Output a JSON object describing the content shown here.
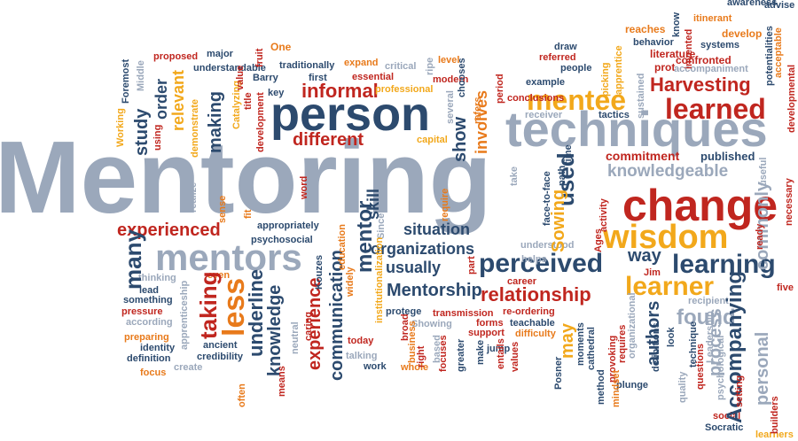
{
  "palette": {
    "red": "#c0261f",
    "orange": "#e87a1b",
    "yellow": "#f2a81b",
    "navy": "#2c4a6e",
    "gray": "#9ba8bb",
    "lightgray": "#b5c0cf"
  },
  "words": [
    {
      "text": "Mentoring",
      "c": "gray"
    },
    {
      "text": "techniques",
      "c": "gray"
    },
    {
      "text": "person",
      "c": "navy"
    },
    {
      "text": "change",
      "c": "red"
    },
    {
      "text": "wisdom",
      "c": "yellow"
    },
    {
      "text": "learned",
      "c": "red"
    },
    {
      "text": "mentee",
      "c": "yellow"
    },
    {
      "text": "Harvesting",
      "c": "red"
    },
    {
      "text": "mentors",
      "c": "gray"
    },
    {
      "text": "perceived",
      "c": "navy"
    },
    {
      "text": "learning",
      "c": "navy"
    },
    {
      "text": "learner",
      "c": "yellow"
    },
    {
      "text": "experienced",
      "c": "red"
    },
    {
      "text": "informal",
      "c": "red"
    },
    {
      "text": "different",
      "c": "red"
    },
    {
      "text": "knowledgeable",
      "c": "gray"
    },
    {
      "text": "situation",
      "c": "navy"
    },
    {
      "text": "organizations",
      "c": "navy"
    },
    {
      "text": "usually",
      "c": "navy"
    },
    {
      "text": "Mentorship",
      "c": "navy"
    },
    {
      "text": "relationship",
      "c": "red"
    },
    {
      "text": "found",
      "c": "gray"
    },
    {
      "text": "way",
      "c": "navy"
    },
    {
      "text": "commitment",
      "c": "red"
    },
    {
      "text": "published",
      "c": "navy"
    },
    {
      "text": "example",
      "c": "navy"
    },
    {
      "text": "receiver",
      "c": "gray"
    },
    {
      "text": "tactics",
      "c": "navy"
    },
    {
      "text": "conclusions",
      "c": "red"
    },
    {
      "text": "draw",
      "c": "navy"
    },
    {
      "text": "referred",
      "c": "red"
    },
    {
      "text": "people",
      "c": "navy"
    },
    {
      "text": "reaches",
      "c": "orange"
    },
    {
      "text": "behavior",
      "c": "navy"
    },
    {
      "text": "literature",
      "c": "red"
    },
    {
      "text": "prot",
      "c": "red"
    },
    {
      "text": "confronted",
      "c": "red"
    },
    {
      "text": "accompaniment",
      "c": "gray"
    },
    {
      "text": "systems",
      "c": "navy"
    },
    {
      "text": "develop",
      "c": "orange"
    },
    {
      "text": "itinerant",
      "c": "orange"
    },
    {
      "text": "awareness",
      "c": "navy"
    },
    {
      "text": "advise",
      "c": "navy"
    },
    {
      "text": "proposed",
      "c": "red"
    },
    {
      "text": "major",
      "c": "navy"
    },
    {
      "text": "One",
      "c": "orange"
    },
    {
      "text": "understandable",
      "c": "navy"
    },
    {
      "text": "traditionally",
      "c": "navy"
    },
    {
      "text": "expand",
      "c": "orange"
    },
    {
      "text": "critical",
      "c": "gray"
    },
    {
      "text": "level",
      "c": "orange"
    },
    {
      "text": "first",
      "c": "navy"
    },
    {
      "text": "essential",
      "c": "red"
    },
    {
      "text": "Barry",
      "c": "navy"
    },
    {
      "text": "professional",
      "c": "yellow"
    },
    {
      "text": "modern",
      "c": "red"
    },
    {
      "text": "key",
      "c": "navy"
    },
    {
      "text": "capital",
      "c": "yellow"
    },
    {
      "text": "appropriately",
      "c": "navy"
    },
    {
      "text": "psychosocial",
      "c": "navy"
    },
    {
      "text": "thinking",
      "c": "gray"
    },
    {
      "text": "lead",
      "c": "navy"
    },
    {
      "text": "something",
      "c": "navy"
    },
    {
      "text": "pressure",
      "c": "red"
    },
    {
      "text": "according",
      "c": "gray"
    },
    {
      "text": "preparing",
      "c": "orange"
    },
    {
      "text": "identity",
      "c": "navy"
    },
    {
      "text": "definition",
      "c": "navy"
    },
    {
      "text": "focus",
      "c": "orange"
    },
    {
      "text": "create",
      "c": "gray"
    },
    {
      "text": "ancient",
      "c": "navy"
    },
    {
      "text": "credibility",
      "c": "navy"
    },
    {
      "text": "even",
      "c": "orange"
    },
    {
      "text": "today",
      "c": "red"
    },
    {
      "text": "talking",
      "c": "gray"
    },
    {
      "text": "work",
      "c": "navy"
    },
    {
      "text": "whole",
      "c": "orange"
    },
    {
      "text": "protege",
      "c": "navy"
    },
    {
      "text": "transmission",
      "c": "red"
    },
    {
      "text": "forms",
      "c": "red"
    },
    {
      "text": "support",
      "c": "red"
    },
    {
      "text": "re-ordering",
      "c": "red"
    },
    {
      "text": "teachable",
      "c": "navy"
    },
    {
      "text": "difficulty",
      "c": "orange"
    },
    {
      "text": "Showing",
      "c": "gray"
    },
    {
      "text": "jump",
      "c": "navy"
    },
    {
      "text": "career",
      "c": "red"
    },
    {
      "text": "understood",
      "c": "gray"
    },
    {
      "text": "helps",
      "c": "gray"
    },
    {
      "text": "Jim",
      "c": "red"
    },
    {
      "text": "recipient",
      "c": "gray"
    },
    {
      "text": "five",
      "c": "red"
    },
    {
      "text": "plunge",
      "c": "navy"
    },
    {
      "text": "social",
      "c": "red"
    },
    {
      "text": "Socratic",
      "c": "navy"
    },
    {
      "text": "learners",
      "c": "yellow"
    },
    {
      "text": "many",
      "c": "navy"
    },
    {
      "text": "taking",
      "c": "red"
    },
    {
      "text": "less",
      "c": "orange"
    },
    {
      "text": "underline",
      "c": "navy"
    },
    {
      "text": "knowledge",
      "c": "navy"
    },
    {
      "text": "experience",
      "c": "red"
    },
    {
      "text": "communication",
      "c": "navy"
    },
    {
      "text": "mentor",
      "c": "navy"
    },
    {
      "text": "skill",
      "c": "navy"
    },
    {
      "text": "used",
      "c": "navy"
    },
    {
      "text": "Sowing",
      "c": "yellow"
    },
    {
      "text": "Accompanying",
      "c": "navy"
    },
    {
      "text": "personal",
      "c": "gray"
    },
    {
      "text": "process",
      "c": "gray"
    },
    {
      "text": "commonly",
      "c": "gray"
    },
    {
      "text": "authors",
      "c": "navy"
    },
    {
      "text": "may",
      "c": "yellow"
    },
    {
      "text": "study",
      "c": "navy"
    },
    {
      "text": "order",
      "c": "navy"
    },
    {
      "text": "relevant",
      "c": "yellow"
    },
    {
      "text": "making",
      "c": "navy"
    },
    {
      "text": "show",
      "c": "navy"
    },
    {
      "text": "involves",
      "c": "orange"
    },
    {
      "text": "Foremost",
      "c": "navy"
    },
    {
      "text": "Middle",
      "c": "gray"
    },
    {
      "text": "Working",
      "c": "yellow"
    },
    {
      "text": "using",
      "c": "red"
    },
    {
      "text": "demonstrate",
      "c": "yellow"
    },
    {
      "text": "Catalyzing",
      "c": "yellow"
    },
    {
      "text": "title",
      "c": "red"
    },
    {
      "text": "development",
      "c": "red"
    },
    {
      "text": "value",
      "c": "red"
    },
    {
      "text": "fruit",
      "c": "red"
    },
    {
      "text": "ripe",
      "c": "gray"
    },
    {
      "text": "several",
      "c": "gray"
    },
    {
      "text": "refers",
      "c": "orange"
    },
    {
      "text": "chooses",
      "c": "navy"
    },
    {
      "text": "period",
      "c": "red"
    },
    {
      "text": "picking",
      "c": "yellow"
    },
    {
      "text": "apprentice",
      "c": "yellow"
    },
    {
      "text": "sustained",
      "c": "gray"
    },
    {
      "text": "know",
      "c": "navy"
    },
    {
      "text": "invented",
      "c": "red"
    },
    {
      "text": "potentialities",
      "c": "navy"
    },
    {
      "text": "acceptable",
      "c": "orange"
    },
    {
      "text": "developmental",
      "c": "red"
    },
    {
      "text": "useful",
      "c": "gray"
    },
    {
      "text": "necessary",
      "c": "red"
    },
    {
      "text": "realize",
      "c": "gray"
    },
    {
      "text": "sense",
      "c": "orange"
    },
    {
      "text": "fit",
      "c": "orange"
    },
    {
      "text": "word",
      "c": "red"
    },
    {
      "text": "Since",
      "c": "gray"
    },
    {
      "text": "require",
      "c": "orange"
    },
    {
      "text": "take",
      "c": "gray"
    },
    {
      "text": "path",
      "c": "navy"
    },
    {
      "text": "face-to-face",
      "c": "navy"
    },
    {
      "text": "time",
      "c": "navy"
    },
    {
      "text": "activity",
      "c": "red"
    },
    {
      "text": "Ages",
      "c": "red"
    },
    {
      "text": "ready",
      "c": "red"
    },
    {
      "text": "Kouzes",
      "c": "navy"
    },
    {
      "text": "education",
      "c": "orange"
    },
    {
      "text": "widely",
      "c": "orange"
    },
    {
      "text": "institutionalization",
      "c": "yellow"
    },
    {
      "text": "part",
      "c": "red"
    },
    {
      "text": "apprenticeship",
      "c": "gray"
    },
    {
      "text": "often",
      "c": "orange"
    },
    {
      "text": "means",
      "c": "red"
    },
    {
      "text": "neutral",
      "c": "gray"
    },
    {
      "text": "caring",
      "c": "red"
    },
    {
      "text": "broad",
      "c": "red"
    },
    {
      "text": "business",
      "c": "orange"
    },
    {
      "text": "right",
      "c": "red"
    },
    {
      "text": "focuses",
      "c": "red"
    },
    {
      "text": "based",
      "c": "gray"
    },
    {
      "text": "greater",
      "c": "navy"
    },
    {
      "text": "make",
      "c": "navy"
    },
    {
      "text": "entails",
      "c": "red"
    },
    {
      "text": "values",
      "c": "red"
    },
    {
      "text": "Posner",
      "c": "navy"
    },
    {
      "text": "moments",
      "c": "navy"
    },
    {
      "text": "cathedral",
      "c": "navy"
    },
    {
      "text": "method",
      "c": "navy"
    },
    {
      "text": "provoking",
      "c": "red"
    },
    {
      "text": "mindset",
      "c": "orange"
    },
    {
      "text": "requires",
      "c": "red"
    },
    {
      "text": "organizational",
      "c": "gray"
    },
    {
      "text": "definitions",
      "c": "navy"
    },
    {
      "text": "look",
      "c": "navy"
    },
    {
      "text": "quality",
      "c": "gray"
    },
    {
      "text": "technique",
      "c": "navy"
    },
    {
      "text": "questions",
      "c": "red"
    },
    {
      "text": "Leadership",
      "c": "gray"
    },
    {
      "text": "psychological",
      "c": "gray"
    },
    {
      "text": "setting",
      "c": "red"
    },
    {
      "text": "builders",
      "c": "red"
    }
  ]
}
